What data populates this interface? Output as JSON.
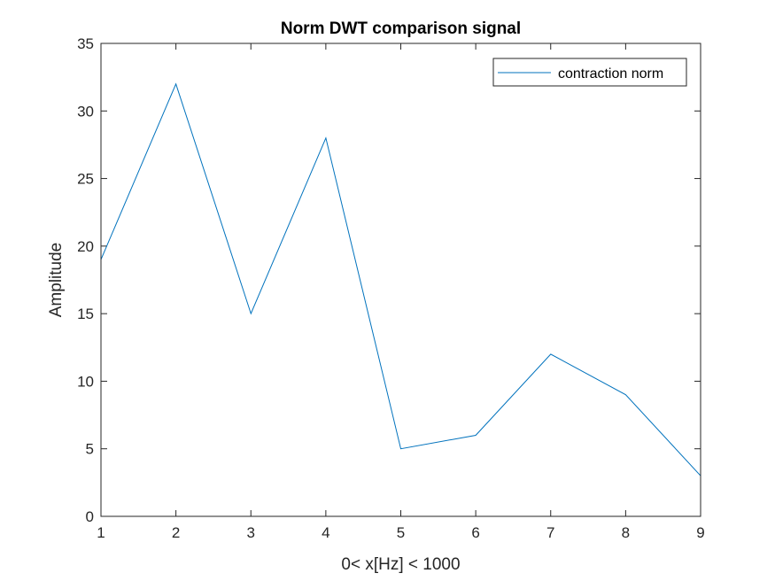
{
  "chart_data": {
    "type": "line",
    "title": "Norm DWT comparison signal",
    "xlabel": "0< x[Hz] < 1000",
    "ylabel": "Amplitude",
    "xlim": [
      1,
      9
    ],
    "ylim": [
      0,
      35
    ],
    "xticks": [
      1,
      2,
      3,
      4,
      5,
      6,
      7,
      8,
      9
    ],
    "yticks": [
      0,
      5,
      10,
      15,
      20,
      25,
      30,
      35
    ],
    "grid": false,
    "legend_position": "top-right",
    "series": [
      {
        "name": "contraction norm",
        "color": "#0072bd",
        "x": [
          1,
          2,
          3,
          4,
          5,
          6,
          7,
          8,
          9
        ],
        "values": [
          19,
          32,
          15,
          28,
          5,
          6,
          12,
          9,
          3
        ]
      }
    ]
  }
}
